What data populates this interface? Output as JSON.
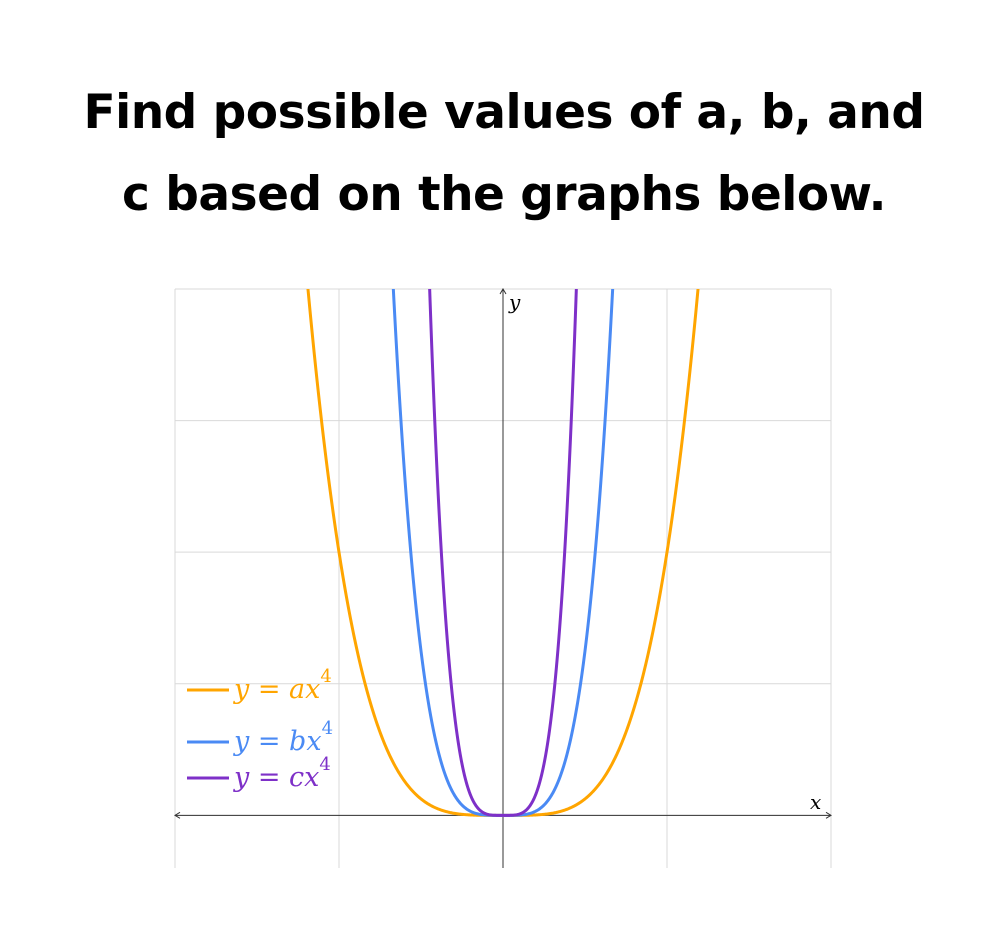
{
  "question": {
    "line1": "Find possible values of a, b, and",
    "line2": "c based on the graphs below."
  },
  "chart_data": {
    "type": "line",
    "title": "",
    "xlabel": "x",
    "ylabel": "y",
    "xlim": [
      -2,
      2
    ],
    "ylim": [
      -0.4,
      4
    ],
    "grid": true,
    "x_gridlines": [
      -2,
      -1,
      0,
      1,
      2
    ],
    "y_gridlines": [
      0,
      1,
      2,
      3,
      4
    ],
    "tick_labels_shown": false,
    "legend_placement": "bottom-left",
    "series": [
      {
        "name": "y = ax^4",
        "equation": "y = a x^4",
        "coefficient": 2,
        "color": "#FFA500"
      },
      {
        "name": "y = bx^4",
        "equation": "y = b x^4",
        "coefficient": 20,
        "color": "#4A8AF4"
      },
      {
        "name": "y = cx^4",
        "equation": "y = c x^4",
        "coefficient": 100,
        "color": "#7E30C8"
      }
    ]
  }
}
